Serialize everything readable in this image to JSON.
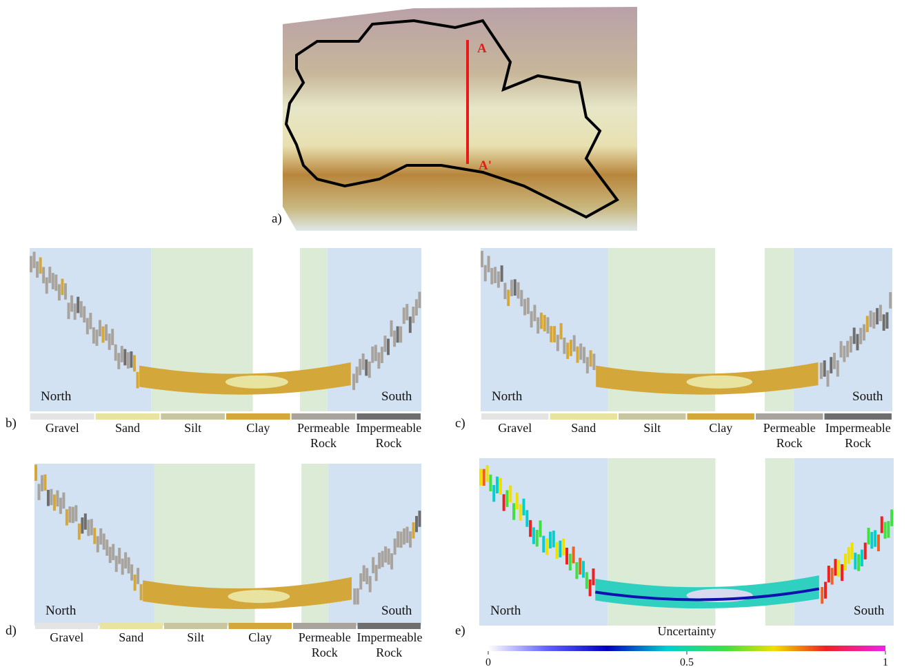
{
  "figure": {
    "map": {
      "label": "a)",
      "section_start": "A",
      "section_end": "A'"
    },
    "panels": [
      {
        "label": "b)",
        "north": "North",
        "south": "South"
      },
      {
        "label": "c)",
        "north": "North",
        "south": "South"
      },
      {
        "label": "d)",
        "north": "North",
        "south": "South"
      },
      {
        "label": "e)",
        "north": "North",
        "south": "South"
      }
    ],
    "legend": [
      {
        "name": "Gravel",
        "color": "#e4e4e4"
      },
      {
        "name": "Sand",
        "color": "#e8e4a0"
      },
      {
        "name": "Silt",
        "color": "#c8c6a0"
      },
      {
        "name": "Clay",
        "color": "#d4a73a"
      },
      {
        "name": "Permeable Rock",
        "color": "#a8a39d"
      },
      {
        "name": "Impermeable Rock",
        "color": "#6e6e6e"
      }
    ],
    "colorbar": {
      "title": "Uncertainty",
      "range": [
        0,
        1
      ],
      "ticks": [
        0,
        0.5,
        1
      ]
    }
  }
}
